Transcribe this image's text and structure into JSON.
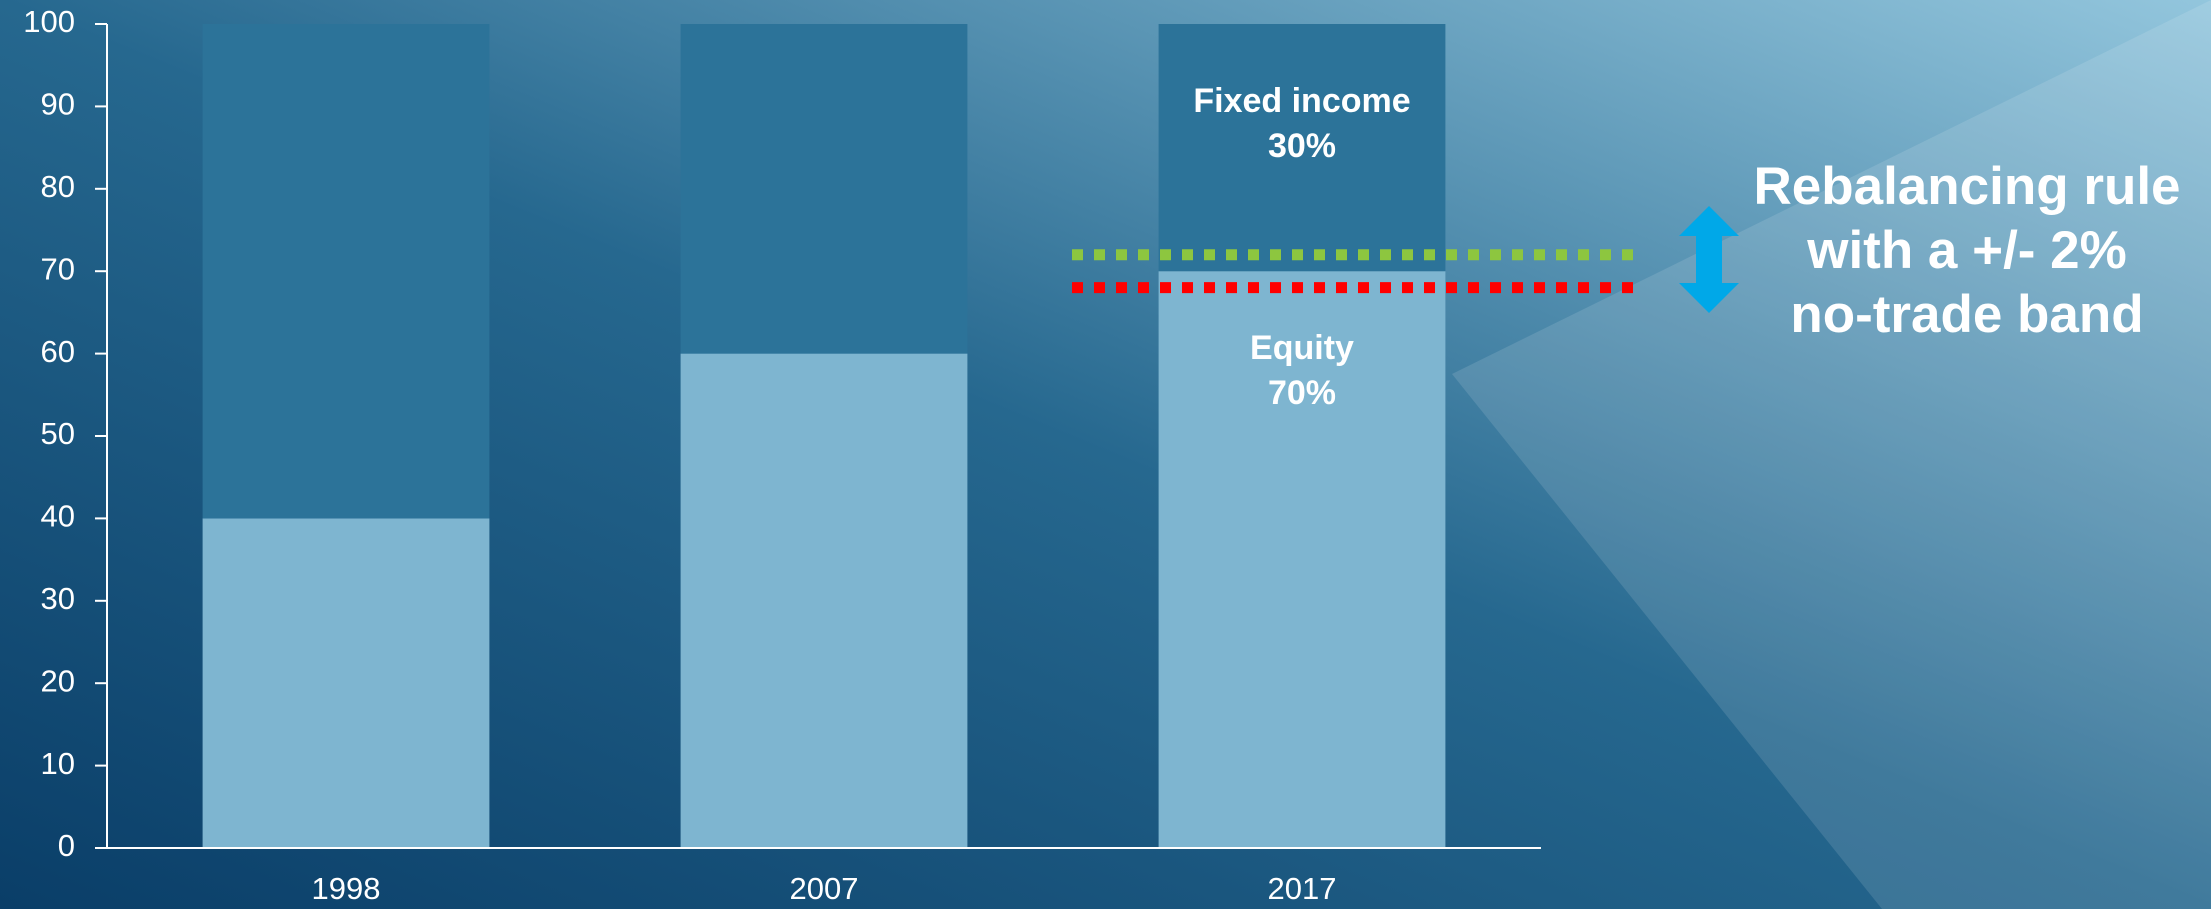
{
  "chart_data": {
    "type": "bar",
    "stacked": true,
    "categories": [
      "1998",
      "2007",
      "2017"
    ],
    "series": [
      {
        "name": "Equity",
        "color": "#7eb5d0",
        "values": [
          40,
          60,
          70
        ],
        "value_labels": [
          null,
          null,
          "70%"
        ]
      },
      {
        "name": "Fixed income",
        "color": "#2c7399",
        "values": [
          60,
          40,
          30
        ],
        "value_labels": [
          null,
          null,
          "30%"
        ]
      }
    ],
    "ylim": [
      0,
      100
    ],
    "yticks": [
      0,
      10,
      20,
      30,
      40,
      50,
      60,
      70,
      80,
      90,
      100
    ],
    "bands": [
      {
        "value": 72,
        "color": "#8dc63f"
      },
      {
        "value": 68,
        "color": "#ff0000"
      }
    ],
    "annotation": [
      "Rebalancing rule",
      "with a +/- 2%",
      "no-trade band"
    ],
    "arrow_color": "#00a8e8"
  }
}
